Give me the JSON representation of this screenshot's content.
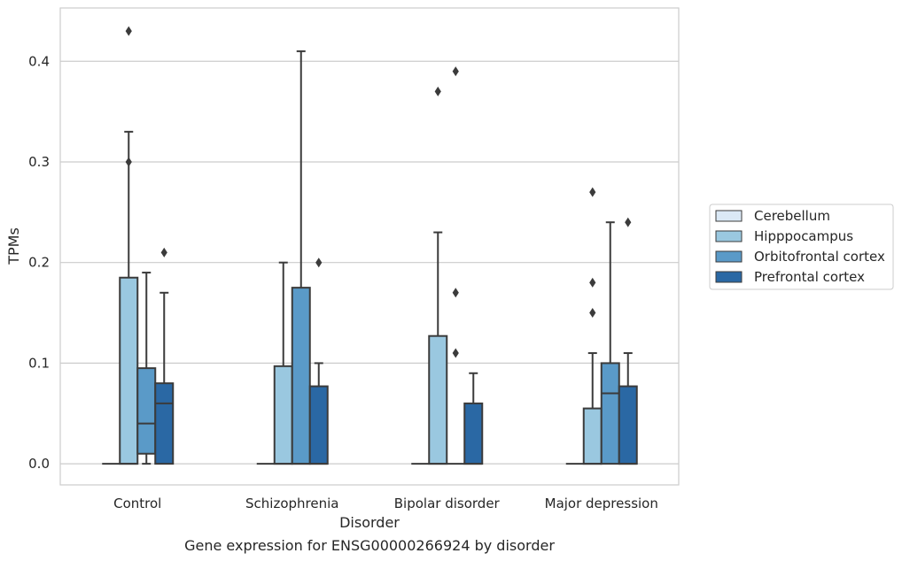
{
  "chart_data": {
    "type": "box",
    "title": "",
    "xlabel": "Disorder",
    "ylabel": "TPMs",
    "caption": "Gene expression for ENSG00000266924 by disorder",
    "ylim": [
      -0.021,
      0.453
    ],
    "yticks": [
      "0.0",
      "0.1",
      "0.2",
      "0.3",
      "0.4"
    ],
    "ytick_values": [
      0.0,
      0.1,
      0.2,
      0.3,
      0.4
    ],
    "grid": true,
    "legend_position": "right",
    "categories": [
      "Control",
      "Schizophrenia",
      "Bipolar disorder",
      "Major depression"
    ],
    "series": [
      {
        "name": "Cerebellum",
        "color": "#dbe9f6",
        "boxes": [
          {
            "q1": 0,
            "median": 0,
            "q3": 0,
            "whislo": 0,
            "whishi": 0,
            "fliers": []
          },
          {
            "q1": 0,
            "median": 0,
            "q3": 0,
            "whislo": 0,
            "whishi": 0,
            "fliers": []
          },
          {
            "q1": 0,
            "median": 0,
            "q3": 0,
            "whislo": 0,
            "whishi": 0,
            "fliers": []
          },
          {
            "q1": 0,
            "median": 0,
            "q3": 0,
            "whislo": 0,
            "whishi": 0,
            "fliers": []
          }
        ]
      },
      {
        "name": "Hipppocampus",
        "color": "#9ac8e0",
        "boxes": [
          {
            "q1": 0,
            "median": 0,
            "q3": 0.185,
            "whislo": 0,
            "whishi": 0.33,
            "fliers": [
              0.43,
              0.3
            ]
          },
          {
            "q1": 0,
            "median": 0,
            "q3": 0.097,
            "whislo": 0,
            "whishi": 0.2,
            "fliers": []
          },
          {
            "q1": 0,
            "median": 0,
            "q3": 0.127,
            "whislo": 0,
            "whishi": 0.23,
            "fliers": [
              0.37
            ]
          },
          {
            "q1": 0,
            "median": 0,
            "q3": 0.055,
            "whislo": 0,
            "whishi": 0.11,
            "fliers": [
              0.27,
              0.18,
              0.15
            ]
          }
        ]
      },
      {
        "name": "Orbitofrontal cortex",
        "color": "#5a9ac8",
        "boxes": [
          {
            "q1": 0.01,
            "median": 0.04,
            "q3": 0.095,
            "whislo": 0,
            "whishi": 0.19,
            "fliers": []
          },
          {
            "q1": 0,
            "median": 0,
            "q3": 0.175,
            "whislo": 0,
            "whishi": 0.41,
            "fliers": []
          },
          {
            "q1": 0,
            "median": 0,
            "q3": 0,
            "whislo": 0,
            "whishi": 0,
            "fliers": [
              0.39,
              0.17,
              0.11
            ]
          },
          {
            "q1": 0,
            "median": 0.07,
            "q3": 0.1,
            "whislo": 0,
            "whishi": 0.24,
            "fliers": []
          }
        ]
      },
      {
        "name": "Prefrontal cortex",
        "color": "#2a68a4",
        "boxes": [
          {
            "q1": 0,
            "median": 0.06,
            "q3": 0.08,
            "whislo": 0,
            "whishi": 0.17,
            "fliers": [
              0.21
            ]
          },
          {
            "q1": 0,
            "median": 0,
            "q3": 0.077,
            "whislo": 0,
            "whishi": 0.1,
            "fliers": [
              0.2
            ]
          },
          {
            "q1": 0,
            "median": 0,
            "q3": 0.06,
            "whislo": 0,
            "whishi": 0.09,
            "fliers": []
          },
          {
            "q1": 0,
            "median": 0,
            "q3": 0.077,
            "whislo": 0,
            "whishi": 0.11,
            "fliers": [
              0.24
            ]
          }
        ]
      }
    ]
  }
}
